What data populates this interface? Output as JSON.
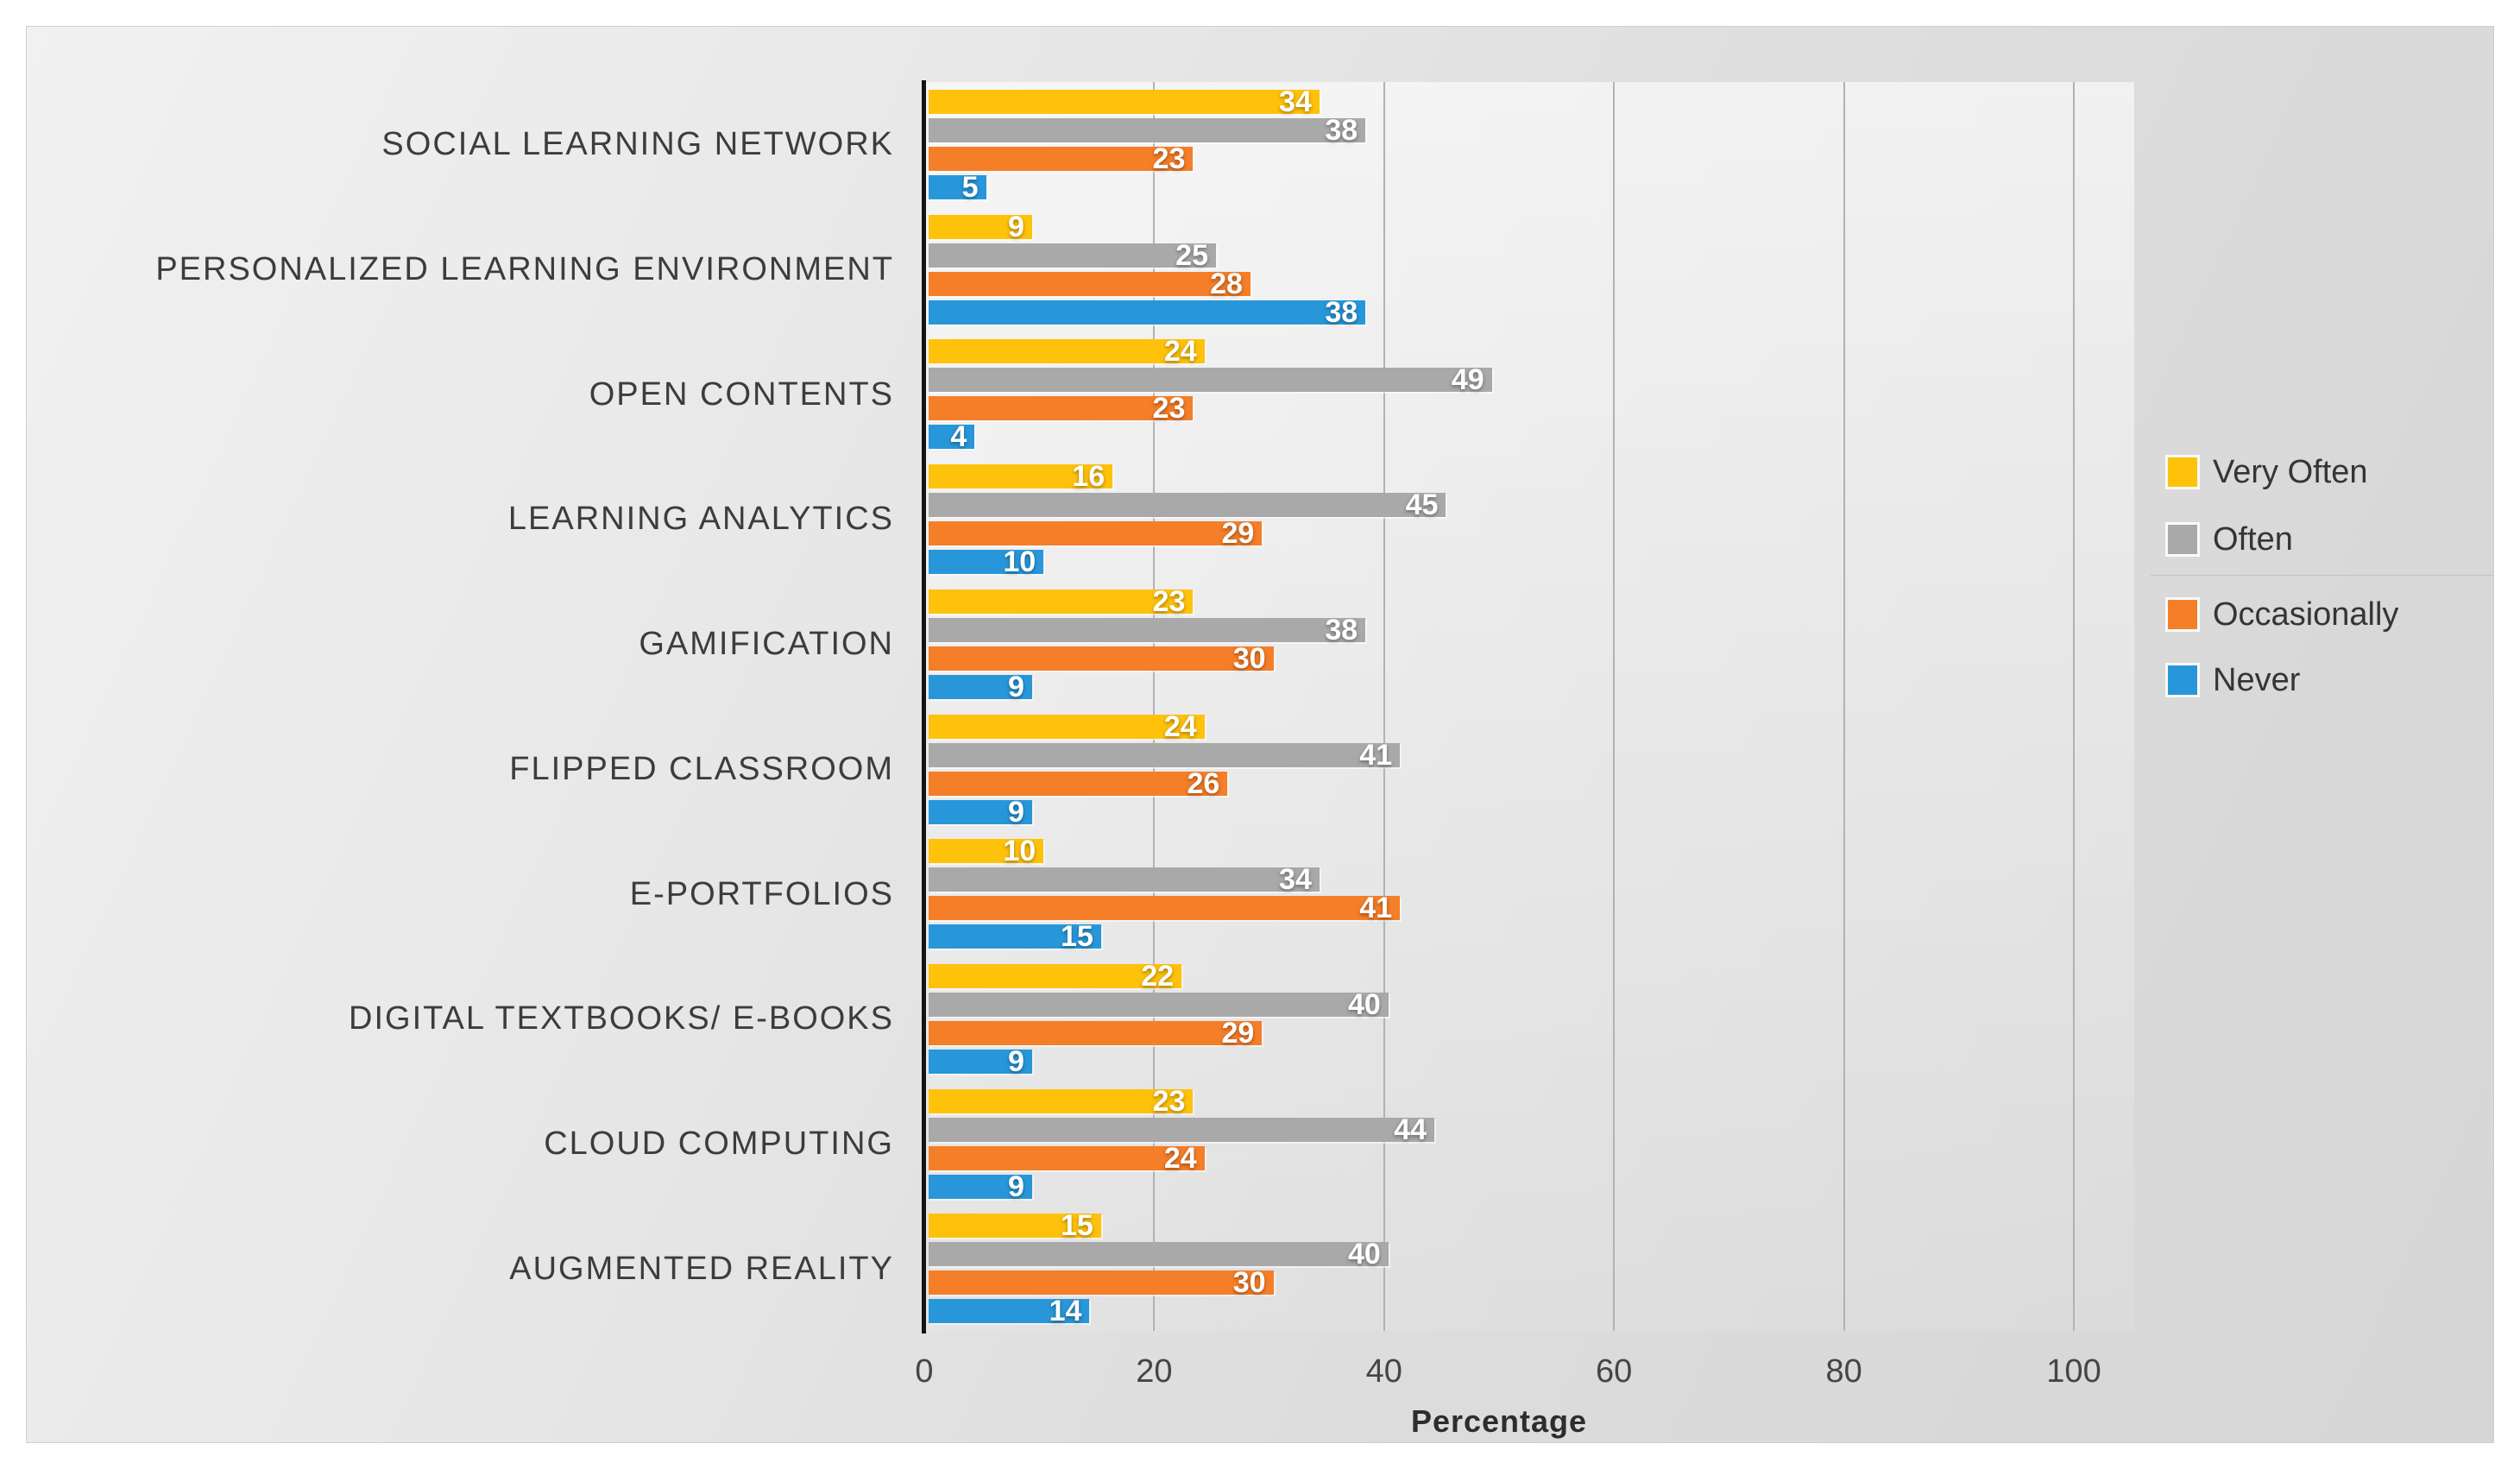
{
  "chart_data": {
    "type": "bar",
    "orientation": "horizontal",
    "xlabel": "Percentage",
    "xlim": [
      0,
      100
    ],
    "x_ticks": [
      0,
      20,
      40,
      60,
      80,
      100
    ],
    "grid": "vertical-major",
    "legend_position": "right",
    "categories": [
      "SOCIAL LEARNING NETWORK",
      "PERSONALIZED LEARNING ENVIRONMENT",
      "OPEN CONTENTS",
      "LEARNING ANALYTICS",
      "GAMIFICATION",
      "FLIPPED CLASSROOM",
      "E-PORTFOLIOS",
      "DIGITAL TEXTBOOKS/ E-BOOKS",
      "CLOUD COMPUTING",
      "AUGMENTED REALITY"
    ],
    "series": [
      {
        "name": "Very Often",
        "color": "#FFC20A",
        "values": [
          34,
          9,
          24,
          16,
          23,
          24,
          10,
          22,
          23,
          15
        ]
      },
      {
        "name": "Often",
        "color": "#A9A9A9",
        "values": [
          38,
          25,
          49,
          45,
          38,
          41,
          34,
          40,
          44,
          40
        ]
      },
      {
        "name": "Occasionally",
        "color": "#F57E28",
        "values": [
          23,
          28,
          23,
          29,
          30,
          26,
          41,
          29,
          24,
          30
        ]
      },
      {
        "name": "Never",
        "color": "#2897D9",
        "values": [
          5,
          38,
          4,
          10,
          9,
          9,
          15,
          9,
          9,
          14
        ]
      }
    ],
    "colors": {
      "axis_line": "#141414",
      "gridline": "#b2b2b2",
      "value_label": "#ffffff",
      "category_label": "#3c3c3c",
      "tick_label": "#454545"
    }
  }
}
